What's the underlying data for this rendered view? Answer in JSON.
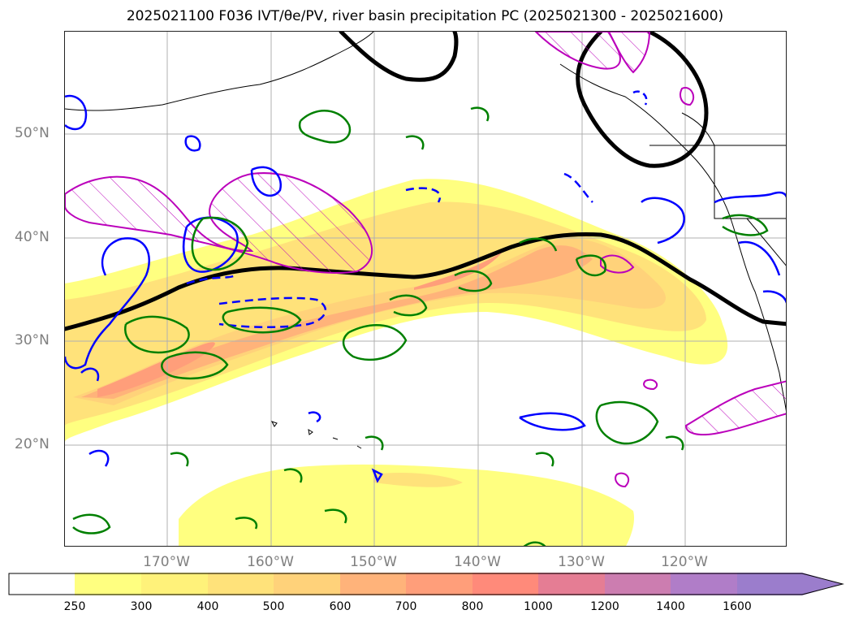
{
  "title": "2025021100 F036 IVT/θe/PV, river basin precipitation PC (2025021300 - 2025021600)",
  "lat_labels": [
    "50°N",
    "40°N",
    "30°N",
    "20°N"
  ],
  "lon_labels": [
    "170°W",
    "160°W",
    "150°W",
    "140°W",
    "130°W",
    "120°W"
  ],
  "colorbar": {
    "ticks": [
      "250",
      "300",
      "400",
      "500",
      "600",
      "700",
      "800",
      "1000",
      "1200",
      "1400",
      "1600"
    ],
    "colors": [
      "#ffffff",
      "#ffff80",
      "#fff27a",
      "#ffe27a",
      "#ffd27a",
      "#ffb37a",
      "#ff9e7a",
      "#ff8a7a",
      "#e57d94",
      "#cc7db0",
      "#b07dc8",
      "#9b7dcc"
    ],
    "extend": "max"
  },
  "legend_colors": {
    "ivt_fill_low": "#ffff80",
    "ivt_fill_high": "#ff8a7a",
    "theta_e_contour": "#000000",
    "pv_contour": "#0000ff",
    "precip_contour": "#008000",
    "basin_contour": "#bb00bb"
  }
}
